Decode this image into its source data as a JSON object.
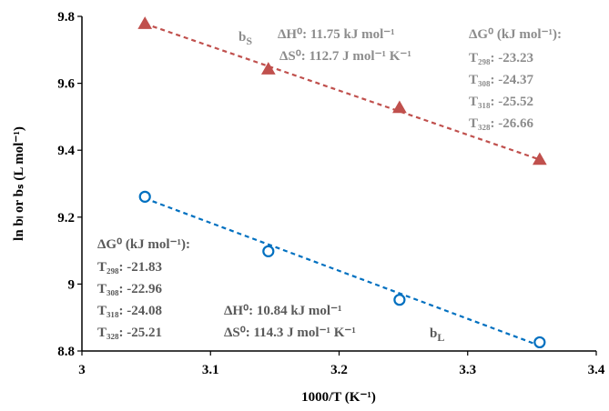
{
  "chart_data": {
    "type": "scatter",
    "xlabel": "1000/T (K⁻¹)",
    "ylabel": "ln bₗ or bₛ (L mol⁻¹)",
    "xlim": [
      3,
      3.4
    ],
    "ylim": [
      8.8,
      9.8
    ],
    "x_ticks": [
      "3",
      "3.1",
      "3.2",
      "3.3",
      "3.4"
    ],
    "y_ticks": [
      "8.8",
      "9",
      "9.2",
      "9.4",
      "9.6",
      "9.8"
    ],
    "grid": false,
    "series": [
      {
        "key": "bS",
        "marker": "triangle",
        "color": "#c0504d",
        "x": [
          3.049,
          3.145,
          3.247,
          3.356
        ],
        "y": [
          9.778,
          9.642,
          9.527,
          9.372
        ],
        "trendline": {
          "type": "linear",
          "style": "dashed",
          "x": [
            3.049,
            3.356
          ],
          "y": [
            9.778,
            9.372
          ]
        }
      },
      {
        "key": "bL",
        "marker": "open-circle",
        "color": "#0070c0",
        "x": [
          3.049,
          3.145,
          3.247,
          3.356
        ],
        "y": [
          9.261,
          9.098,
          8.953,
          8.826
        ],
        "trendline": {
          "type": "linear",
          "style": "dashed",
          "x": [
            3.049,
            3.356
          ],
          "y": [
            9.256,
            8.816
          ]
        }
      }
    ],
    "annotations": {
      "bS_label": "b",
      "bS_sub": "S",
      "bL_label": "b",
      "bL_sub": "L",
      "bS_dH": "ΔH⁰: 11.75 kJ mol⁻¹",
      "bS_dS": "ΔS⁰: 112.7 J mol⁻¹ K⁻¹",
      "bS_dG_title": "ΔG⁰ (kJ mol⁻¹):",
      "bS_T298": "T₂₉₈: -23.23",
      "bS_T308": "T₃₀₈: -24.37",
      "bS_T318": "T₃₁₈: -25.52",
      "bS_T328": "T₃₂₈: -26.66",
      "bL_dG_title": "ΔG⁰ (kJ mol⁻¹):",
      "bL_T298": "T₂₉₈: -21.83",
      "bL_T308": "T₃₀₈: -22.96",
      "bL_T318": "T₃₁₈: -24.08",
      "bL_T328": "T₃₂₈: -25.21",
      "bL_dH": "ΔH⁰: 10.84 kJ mol⁻¹",
      "bL_dS": "ΔS⁰: 114.3 J mol⁻¹ K⁻¹"
    },
    "annotation_colors": {
      "text_gray": "#8c8c8c",
      "text_dark": "#595959"
    }
  }
}
